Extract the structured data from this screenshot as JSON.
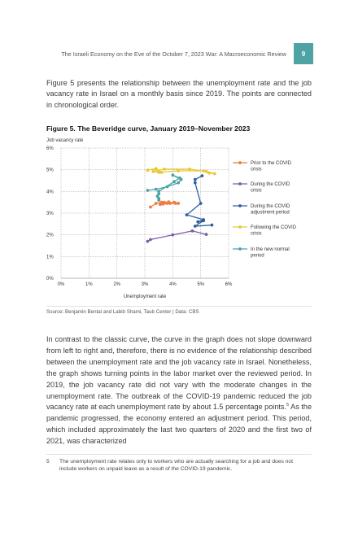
{
  "header": {
    "running_title": "The Israeli Economy on the Eve of the October 7, 2023 War: A Macroeconomic Review",
    "page_number": "9"
  },
  "intro_paragraph": "Figure 5 presents the relationship between the unemployment rate and the job vacancy rate in Israel on a monthly basis since 2019. The points are connected in chronological order.",
  "figure_title": "Figure 5. The Beveridge curve, January 2019–November 2023",
  "source": "Source: Benjamin Bental and Labib Shami, Taub Center | Data: CBS",
  "body_paragraph_1": "In contrast to the classic curve, the curve in the graph does not slope downward from left to right and, therefore, there is no evidence of the relationship described between the unemployment rate and the job vacancy rate in Israel. Nonetheless, the graph shows turning points in the labor market over the reviewed period. In 2019, the job vacancy rate did not vary with the moderate changes in the unemployment rate. The outbreak of the COVID-19 pandemic reduced the job vacancy rate at each unemployment rate by about 1.5 percentage points.",
  "footnote_ref": "5",
  "body_paragraph_2": " As the pandemic progressed, the economy entered an adjustment period. This period, which included approximately the last two quarters of 2020 and the first two of 2021, was characterized",
  "footnote": {
    "number": "5",
    "text": "The unemployment rate relates only to workers who are actually searching for a job and does not include workers on unpaid leave as a result of the COVID-19 pandemic."
  },
  "chart_data": {
    "type": "line",
    "title": "Figure 5. The Beveridge curve, January 2019–November 2023",
    "xlabel": "Unemployment rate",
    "ylabel": "Job vacancy rate",
    "xlim": [
      0,
      6
    ],
    "ylim": [
      0,
      6
    ],
    "x_ticks": [
      "0%",
      "1%",
      "2%",
      "3%",
      "4%",
      "5%",
      "6%"
    ],
    "y_ticks": [
      "0%",
      "1%",
      "2%",
      "3%",
      "4%",
      "5%",
      "6%"
    ],
    "grid": true,
    "legend_position": "right",
    "series": [
      {
        "name": "Prior to the COVID crisis",
        "color": "#f07b3f",
        "points": [
          [
            3.2,
            3.28
          ],
          [
            3.4,
            3.45
          ],
          [
            3.6,
            3.5
          ],
          [
            3.9,
            3.45
          ],
          [
            3.55,
            3.4
          ],
          [
            3.7,
            3.5
          ],
          [
            4.1,
            3.45
          ],
          [
            3.85,
            3.52
          ],
          [
            3.65,
            3.42
          ],
          [
            4.05,
            3.5
          ],
          [
            3.8,
            3.45
          ],
          [
            4.2,
            3.45
          ]
        ]
      },
      {
        "name": "During the COVID crisis",
        "color": "#7b5ea7",
        "points": [
          [
            3.1,
            1.7
          ],
          [
            3.2,
            1.78
          ],
          [
            4.0,
            2.0
          ],
          [
            4.7,
            2.18
          ],
          [
            5.2,
            2.02
          ]
        ]
      },
      {
        "name": "During the COVID adjustment period",
        "color": "#2f5f9f",
        "points": [
          [
            5.4,
            2.45
          ],
          [
            4.8,
            2.4
          ],
          [
            5.1,
            2.65
          ],
          [
            4.9,
            2.6
          ],
          [
            5.1,
            2.7
          ],
          [
            4.5,
            2.92
          ],
          [
            5.0,
            3.45
          ],
          [
            4.8,
            4.4
          ],
          [
            4.8,
            4.55
          ],
          [
            5.05,
            4.72
          ]
        ]
      },
      {
        "name": "Following the COVID crisis",
        "color": "#e8c832",
        "points": [
          [
            3.1,
            4.98
          ],
          [
            3.4,
            5.05
          ],
          [
            3.6,
            4.88
          ],
          [
            3.3,
            4.92
          ],
          [
            3.7,
            5.03
          ],
          [
            4.6,
            5.03
          ],
          [
            5.2,
            4.92
          ],
          [
            5.3,
            4.85
          ],
          [
            5.5,
            4.82
          ],
          [
            5.1,
            4.95
          ],
          [
            4.2,
            4.95
          ],
          [
            3.5,
            4.88
          ]
        ]
      },
      {
        "name": "In the new normal period",
        "color": "#4fa3a5",
        "points": [
          [
            3.1,
            4.05
          ],
          [
            3.4,
            4.1
          ],
          [
            3.8,
            4.22
          ],
          [
            4.2,
            4.4
          ],
          [
            4.3,
            4.55
          ],
          [
            4.0,
            4.75
          ],
          [
            4.25,
            4.62
          ],
          [
            4.05,
            4.45
          ],
          [
            3.5,
            4.0
          ],
          [
            3.5,
            3.88
          ],
          [
            3.45,
            3.78
          ],
          [
            3.5,
            3.68
          ],
          [
            3.5,
            3.6
          ]
        ]
      }
    ]
  }
}
